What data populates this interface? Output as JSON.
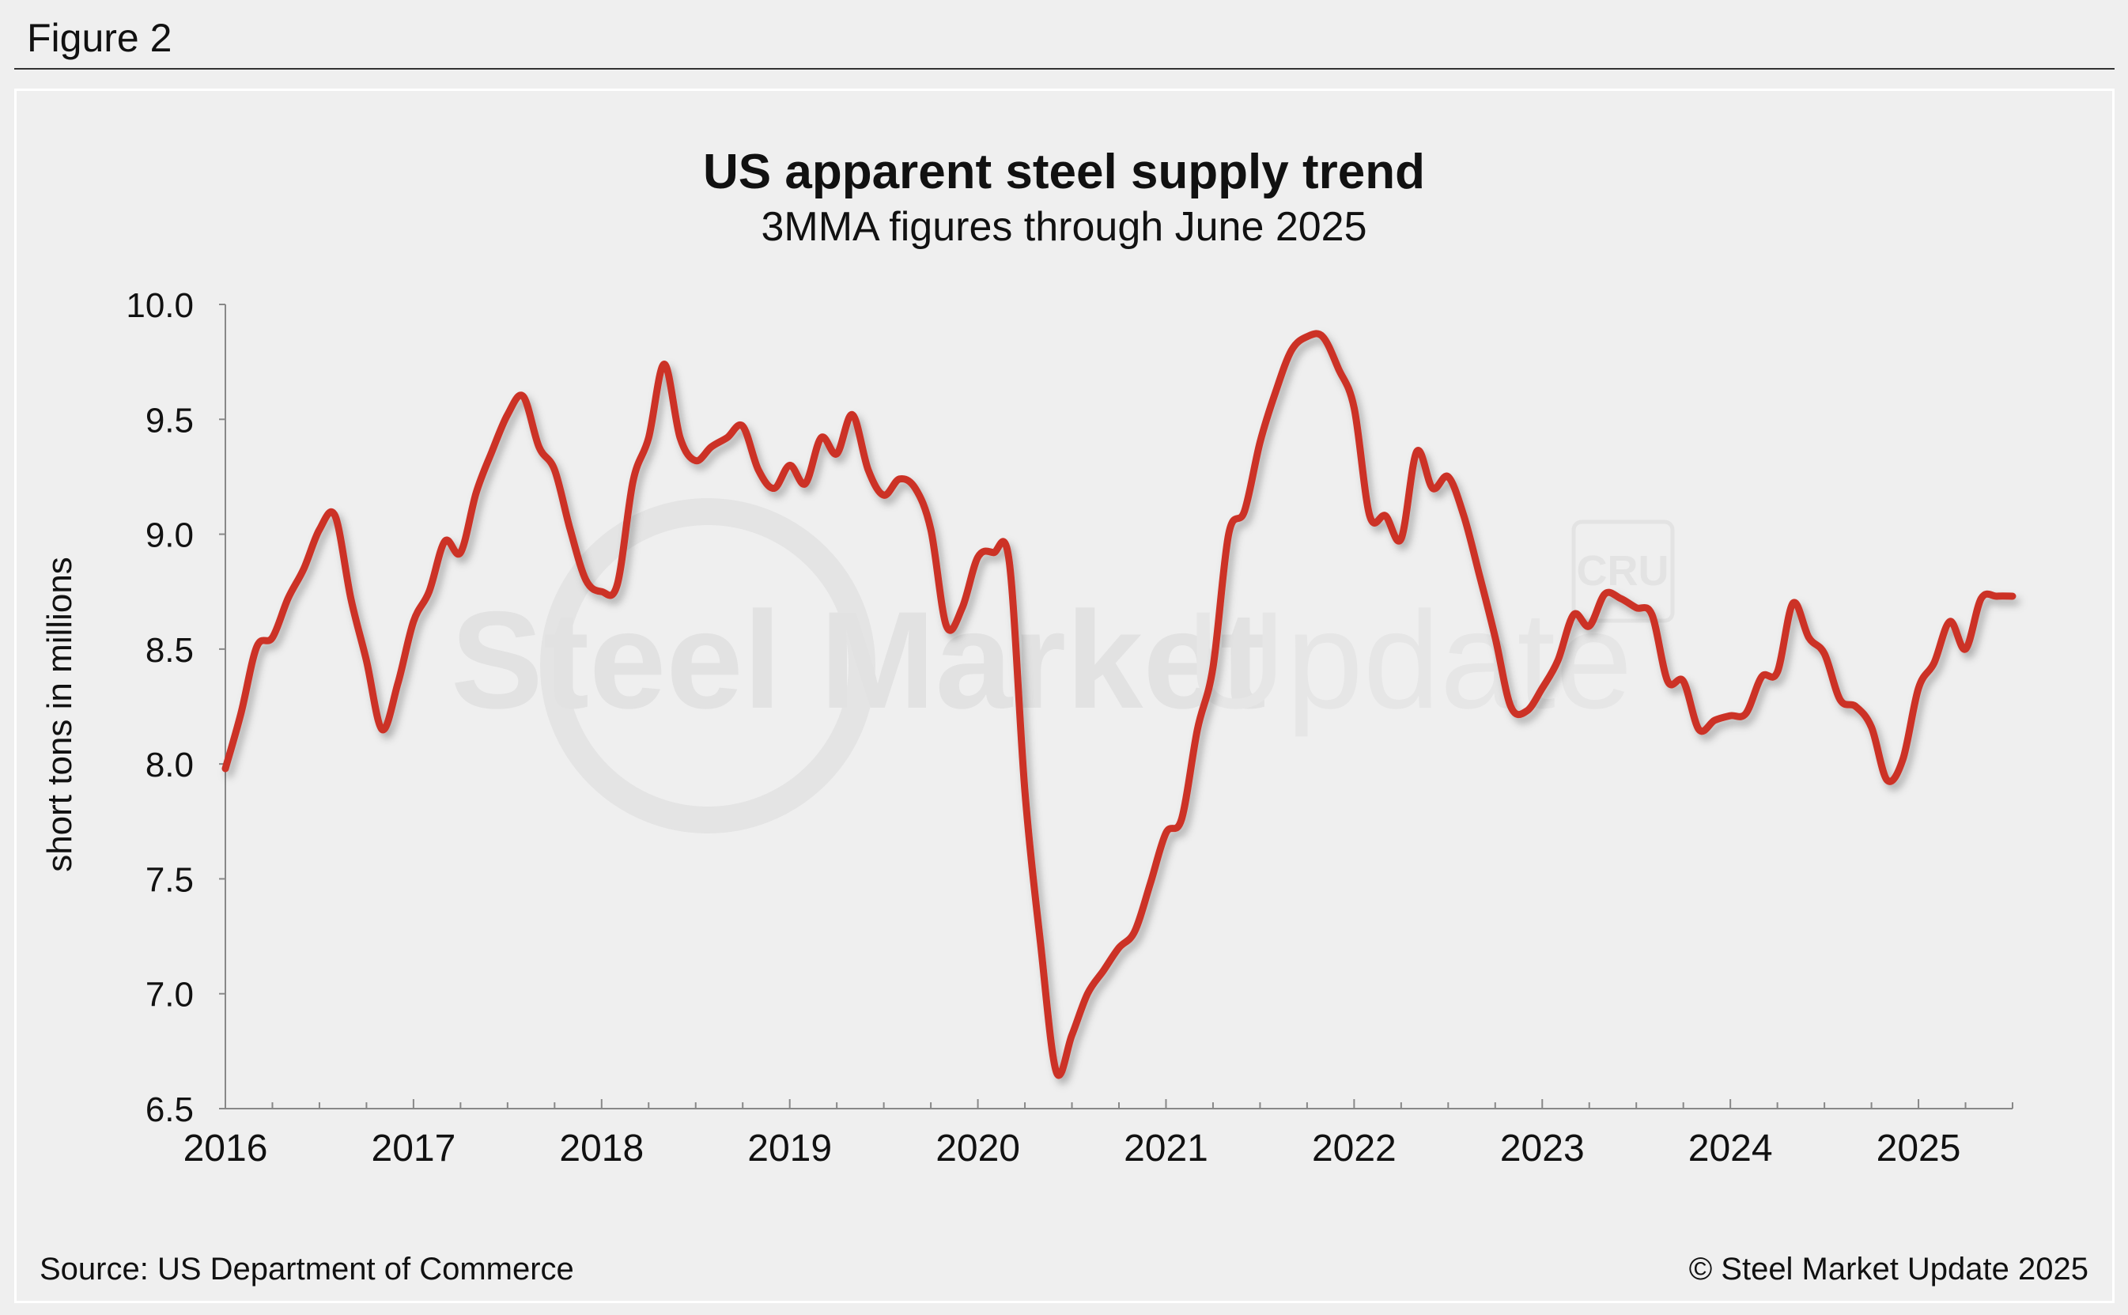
{
  "figure_label": "Figure 2",
  "source": "Source: US Department of Commerce",
  "copyright": "© Steel Market Update 2025",
  "watermark": {
    "text_bold": "Steel Market",
    "text_light": "Update",
    "badge": "CRU"
  },
  "colors": {
    "line": "#cc3327",
    "background": "#efefef",
    "axis": "#888888",
    "watermark": "#e2e2e2"
  },
  "chart_data": {
    "type": "line",
    "title": "US apparent steel supply trend",
    "subtitle": "3MMA figures through June 2025",
    "xlabel": "",
    "ylabel": "short tons in millions",
    "xlim": [
      2016.0,
      2025.5
    ],
    "ylim": [
      6.5,
      10.0
    ],
    "yticks": [
      "10.0",
      "9.5",
      "9.0",
      "8.5",
      "8.0",
      "7.5",
      "7.0",
      "6.5"
    ],
    "xticks": [
      "2016",
      "2017",
      "2018",
      "2019",
      "2020",
      "2021",
      "2022",
      "2023",
      "2024",
      "2025"
    ],
    "grid": false,
    "series": [
      {
        "name": "US apparent steel supply (3MMA)",
        "x": [
          2016.0,
          2016.083,
          2016.167,
          2016.25,
          2016.333,
          2016.417,
          2016.5,
          2016.583,
          2016.667,
          2016.75,
          2016.833,
          2016.917,
          2017.0,
          2017.083,
          2017.167,
          2017.25,
          2017.333,
          2017.417,
          2017.5,
          2017.583,
          2017.667,
          2017.75,
          2017.833,
          2017.917,
          2018.0,
          2018.083,
          2018.167,
          2018.25,
          2018.333,
          2018.417,
          2018.5,
          2018.583,
          2018.667,
          2018.75,
          2018.833,
          2018.917,
          2019.0,
          2019.083,
          2019.167,
          2019.25,
          2019.333,
          2019.417,
          2019.5,
          2019.583,
          2019.667,
          2019.75,
          2019.833,
          2019.917,
          2020.0,
          2020.083,
          2020.167,
          2020.25,
          2020.333,
          2020.417,
          2020.5,
          2020.583,
          2020.667,
          2020.75,
          2020.833,
          2020.917,
          2021.0,
          2021.083,
          2021.167,
          2021.25,
          2021.333,
          2021.417,
          2021.5,
          2021.583,
          2021.667,
          2021.75,
          2021.833,
          2021.917,
          2022.0,
          2022.083,
          2022.167,
          2022.25,
          2022.333,
          2022.417,
          2022.5,
          2022.583,
          2022.667,
          2022.75,
          2022.833,
          2022.917,
          2023.0,
          2023.083,
          2023.167,
          2023.25,
          2023.333,
          2023.417,
          2023.5,
          2023.583,
          2023.667,
          2023.75,
          2023.833,
          2023.917,
          2024.0,
          2024.083,
          2024.167,
          2024.25,
          2024.333,
          2024.417,
          2024.5,
          2024.583,
          2024.667,
          2024.75,
          2024.833,
          2024.917,
          2025.0,
          2025.083,
          2025.167,
          2025.25,
          2025.333,
          2025.417,
          2025.5
        ],
        "y": [
          7.98,
          8.22,
          8.51,
          8.55,
          8.72,
          8.85,
          9.02,
          9.08,
          8.72,
          8.45,
          8.15,
          8.35,
          8.62,
          8.75,
          8.97,
          8.92,
          9.18,
          9.36,
          9.52,
          9.6,
          9.38,
          9.28,
          9.02,
          8.8,
          8.75,
          8.78,
          9.23,
          9.42,
          9.74,
          9.42,
          9.32,
          9.38,
          9.42,
          9.47,
          9.28,
          9.2,
          9.3,
          9.22,
          9.42,
          9.35,
          9.52,
          9.28,
          9.17,
          9.24,
          9.2,
          9.02,
          8.6,
          8.68,
          8.9,
          8.92,
          8.88,
          7.88,
          7.22,
          6.66,
          6.82,
          7.0,
          7.1,
          7.2,
          7.27,
          7.48,
          7.7,
          7.76,
          8.15,
          8.42,
          9.0,
          9.1,
          9.4,
          9.62,
          9.8,
          9.86,
          9.86,
          9.72,
          9.55,
          9.08,
          9.08,
          8.98,
          9.36,
          9.2,
          9.25,
          9.08,
          8.82,
          8.55,
          8.25,
          8.23,
          8.33,
          8.45,
          8.65,
          8.6,
          8.74,
          8.72,
          8.68,
          8.65,
          8.36,
          8.36,
          8.15,
          8.19,
          8.21,
          8.22,
          8.38,
          8.4,
          8.7,
          8.55,
          8.48,
          8.28,
          8.25,
          8.16,
          7.93,
          8.02,
          8.33,
          8.44,
          8.62,
          8.5,
          8.72,
          8.73,
          8.73
        ]
      }
    ]
  }
}
